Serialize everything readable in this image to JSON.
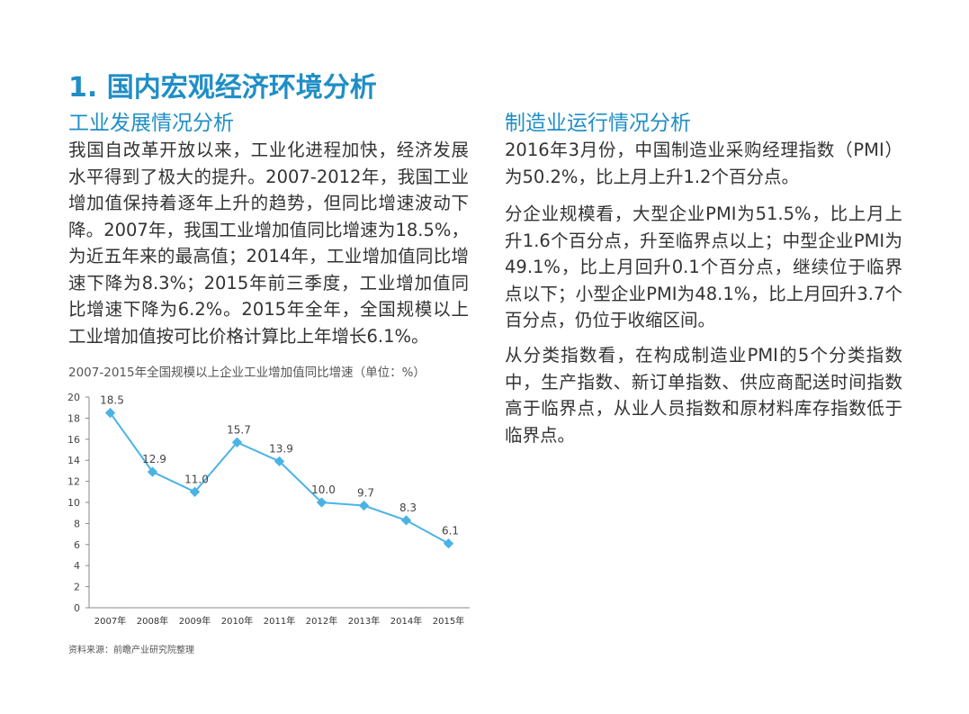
{
  "page": {
    "title": "1. 国内宏观经济环境分析"
  },
  "left": {
    "heading": "工业发展情况分析",
    "body": "我国自改革开放以来，工业化进程加快，经济发展水平得到了极大的提升。2007-2012年，我国工业增加值保持着逐年上升的趋势，但同比增速波动下降。2007年，我国工业增加值同比增速为18.5%，为近五年来的最高值；2014年，工业增加值同比增速下降为8.3%；2015年前三季度，工业增加值同比增速下降为6.2%。2015年全年，全国规模以上工业增加值按可比价格计算比上年增长6.1%。",
    "chart_caption": "2007-2015年全国规模以上企业工业增加值同比增速（单位：%）",
    "source": "资料来源：前瞻产业研究院整理"
  },
  "right": {
    "heading": "制造业运行情况分析",
    "paragraphs": [
      "2016年3月份，中国制造业采购经理指数（PMI）为50.2%，比上月上升1.2个百分点。",
      "分企业规模看，大型企业PMI为51.5%，比上月上升1.6个百分点，升至临界点以上；中型企业PMI为49.1%，比上月回升0.1个百分点，继续位于临界点以下；小型企业PMI为48.1%，比上月回升3.7个百分点，仍位于收缩区间。",
      "从分类指数看，在构成制造业PMI的5个分类指数中，生产指数、新订单指数、供应商配送时间指数高于临界点，从业人员指数和原材料库存指数低于临界点。"
    ]
  },
  "colors": {
    "title": "#1f8ec6",
    "line": "#4ab3e6",
    "axis": "#888888",
    "text": "#333333"
  },
  "chart_data": {
    "type": "line",
    "categories": [
      "2007年",
      "2008年",
      "2009年",
      "2010年",
      "2011年",
      "2012年",
      "2013年",
      "2014年",
      "2015年"
    ],
    "series": [
      {
        "values": [
          18.5,
          12.9,
          11.0,
          15.7,
          13.9,
          10.0,
          9.7,
          8.3,
          6.1
        ]
      }
    ],
    "data_labels": [
      "18.5",
      "12.9",
      "11.0",
      "15.7",
      "13.9",
      "10.0",
      "9.7",
      "8.3",
      "6.1"
    ],
    "ylim": [
      0,
      20
    ],
    "yticks": [
      0,
      2,
      4,
      6,
      8,
      10,
      12,
      14,
      16,
      18,
      20
    ],
    "grid": false,
    "legend": "none",
    "title": "",
    "xlabel": "",
    "ylabel": ""
  }
}
